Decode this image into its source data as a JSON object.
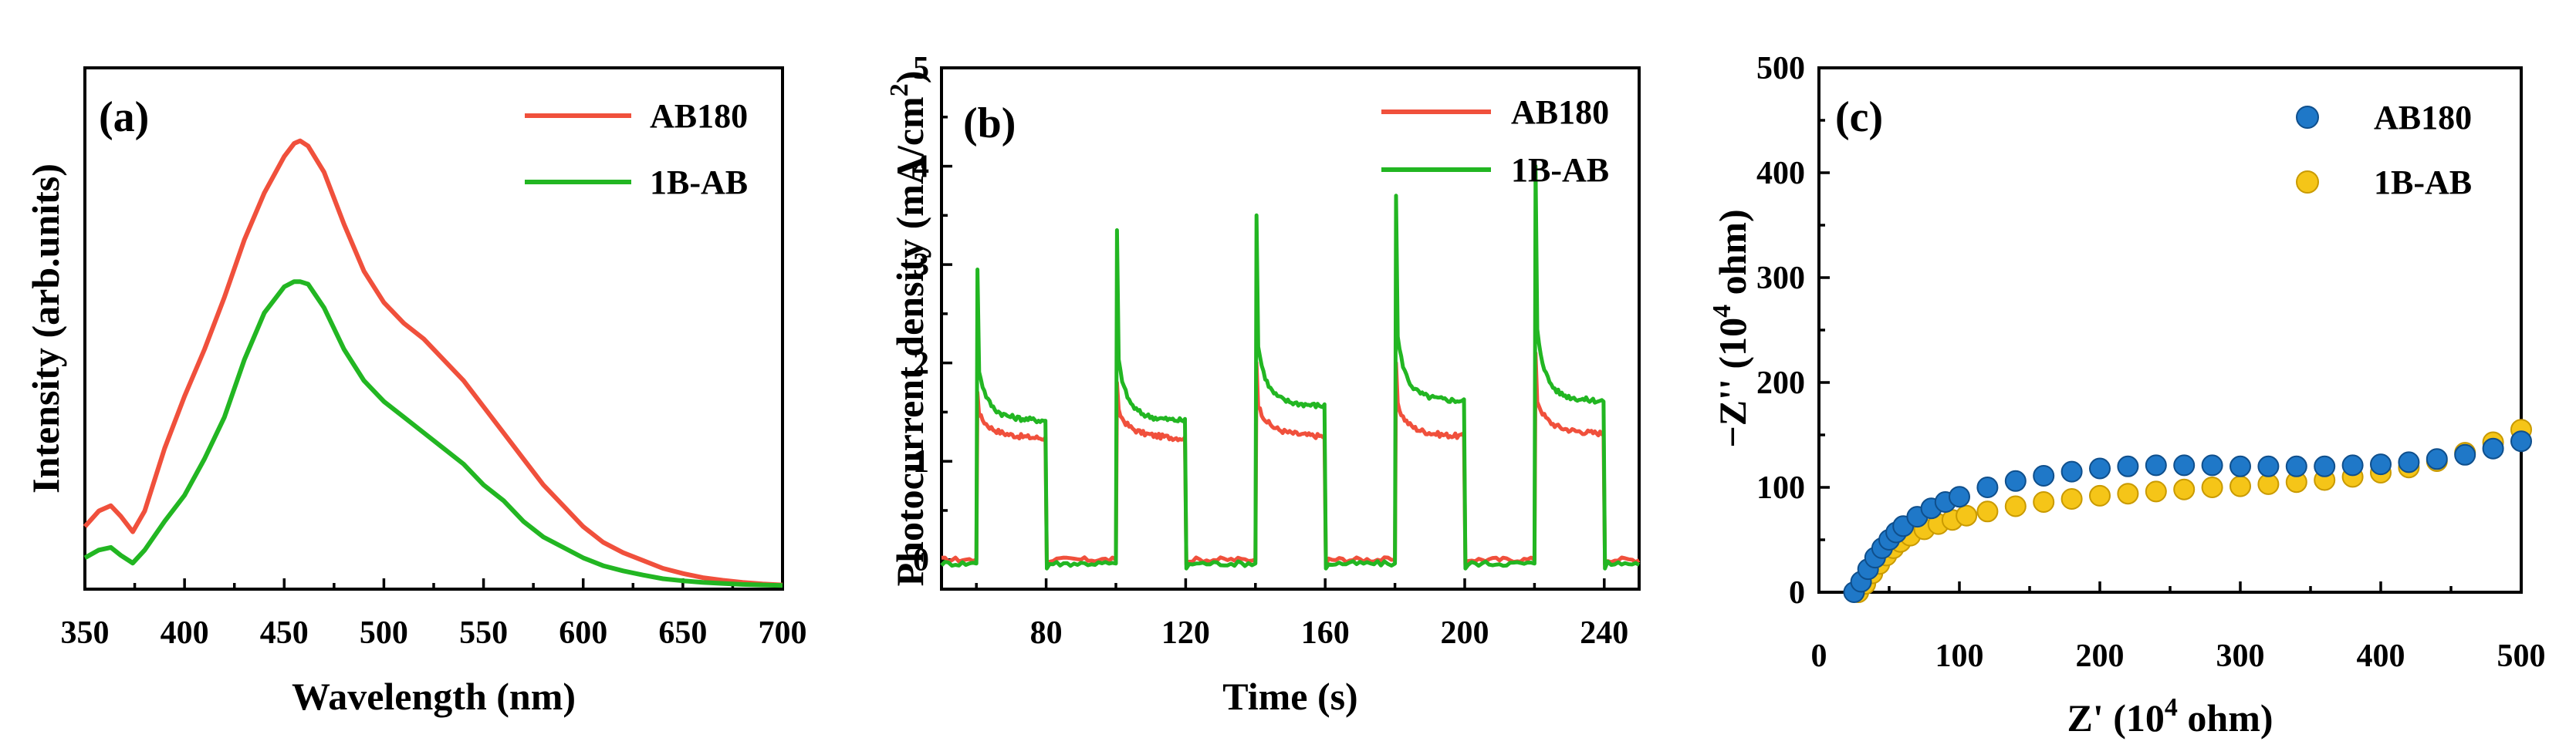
{
  "chart_data": [
    {
      "type": "line",
      "panel_label": "(a)",
      "title": "",
      "xlabel": "Wavelength (nm)",
      "ylabel": "Intensity (arb.units)",
      "xlim": [
        350,
        700
      ],
      "ylim": [
        0,
        1
      ],
      "xticks": [
        "350",
        "400",
        "450",
        "500",
        "550",
        "600",
        "650",
        "700"
      ],
      "yticks_shown": false,
      "legend_position": "top-right",
      "x": [
        350,
        357,
        363,
        368,
        374,
        380,
        390,
        400,
        410,
        420,
        430,
        440,
        450,
        455,
        458,
        462,
        470,
        480,
        490,
        500,
        510,
        520,
        530,
        540,
        550,
        560,
        570,
        580,
        590,
        600,
        610,
        620,
        630,
        640,
        650,
        660,
        670,
        680,
        690,
        700
      ],
      "series": [
        {
          "name": "AB180",
          "color": "#f0503c",
          "values": [
            0.12,
            0.15,
            0.16,
            0.14,
            0.11,
            0.15,
            0.27,
            0.37,
            0.46,
            0.56,
            0.67,
            0.76,
            0.83,
            0.855,
            0.86,
            0.85,
            0.8,
            0.7,
            0.61,
            0.55,
            0.51,
            0.48,
            0.44,
            0.4,
            0.35,
            0.3,
            0.25,
            0.2,
            0.16,
            0.12,
            0.09,
            0.07,
            0.055,
            0.04,
            0.03,
            0.022,
            0.017,
            0.013,
            0.01,
            0.008
          ]
        },
        {
          "name": "1B-AB",
          "color": "#22b622",
          "values": [
            0.06,
            0.075,
            0.08,
            0.065,
            0.05,
            0.075,
            0.13,
            0.18,
            0.25,
            0.33,
            0.44,
            0.53,
            0.58,
            0.59,
            0.59,
            0.585,
            0.54,
            0.46,
            0.4,
            0.36,
            0.33,
            0.3,
            0.27,
            0.24,
            0.2,
            0.17,
            0.13,
            0.1,
            0.08,
            0.06,
            0.045,
            0.035,
            0.027,
            0.02,
            0.016,
            0.013,
            0.011,
            0.009,
            0.008,
            0.007
          ]
        }
      ]
    },
    {
      "type": "line",
      "panel_label": "(b)",
      "title": "",
      "xlabel": "Time (s)",
      "ylabel_main": "Photocurrent density (mA/cm",
      "ylabel_sup": "2",
      "ylabel_end": ")",
      "xlim": [
        50,
        250
      ],
      "ylim": [
        -0.3,
        5
      ],
      "xticks": [
        "80",
        "120",
        "160",
        "200",
        "240"
      ],
      "yticks": [
        "0",
        "1",
        "2",
        "3",
        "4",
        "5"
      ],
      "legend_position": "top-right",
      "light_on_times": [
        60,
        100,
        140,
        180,
        220
      ],
      "light_on_duration": 20,
      "series": [
        {
          "name": "AB180",
          "color": "#f0503c",
          "dark_current": 0.0,
          "spikes": [
            1.7,
            1.8,
            2.0,
            2.0,
            2.1
          ],
          "steady": [
            1.22,
            1.22,
            1.24,
            1.24,
            1.27
          ]
        },
        {
          "name": "1B-AB",
          "color": "#22b622",
          "dark_current": -0.04,
          "spikes": [
            2.95,
            3.35,
            3.5,
            3.7,
            4.0
          ],
          "steady": [
            1.4,
            1.4,
            1.55,
            1.6,
            1.6
          ]
        }
      ]
    },
    {
      "type": "scatter",
      "panel_label": "(c)",
      "title": "",
      "xlabel_main": "Z' (10",
      "xlabel_sup": "4",
      "xlabel_end": " ohm)",
      "ylabel_main": "−Z'' (10",
      "ylabel_sup": "4",
      "ylabel_end": " ohm)",
      "xlim": [
        0,
        500
      ],
      "ylim": [
        0,
        500
      ],
      "xticks": [
        "0",
        "100",
        "200",
        "300",
        "400",
        "500"
      ],
      "yticks": [
        "0",
        "100",
        "200",
        "300",
        "400",
        "500"
      ],
      "legend_position": "top-right",
      "series": [
        {
          "name": "AB180",
          "color": "#1f78c8",
          "x": [
            25,
            30,
            35,
            40,
            45,
            50,
            55,
            60,
            70,
            80,
            90,
            100,
            120,
            140,
            160,
            180,
            200,
            220,
            240,
            260,
            280,
            300,
            320,
            340,
            360,
            380,
            400,
            420,
            440,
            460,
            480,
            500
          ],
          "y": [
            0,
            10,
            22,
            33,
            42,
            50,
            57,
            63,
            72,
            80,
            86,
            91,
            100,
            106,
            111,
            115,
            118,
            120,
            121,
            121,
            121,
            120,
            120,
            120,
            120,
            121,
            122,
            124,
            127,
            131,
            137,
            144
          ]
        },
        {
          "name": "1B-AB",
          "color": "#f5c518",
          "x": [
            28,
            33,
            38,
            43,
            48,
            53,
            58,
            65,
            75,
            85,
            95,
            105,
            120,
            140,
            160,
            180,
            200,
            220,
            240,
            260,
            280,
            300,
            320,
            340,
            360,
            380,
            400,
            420,
            440,
            460,
            480,
            500
          ],
          "y": [
            0,
            8,
            18,
            27,
            35,
            42,
            48,
            54,
            60,
            65,
            69,
            73,
            77,
            82,
            86,
            89,
            92,
            94,
            96,
            98,
            100,
            101,
            103,
            105,
            107,
            110,
            114,
            119,
            125,
            133,
            143,
            155
          ]
        }
      ]
    }
  ]
}
